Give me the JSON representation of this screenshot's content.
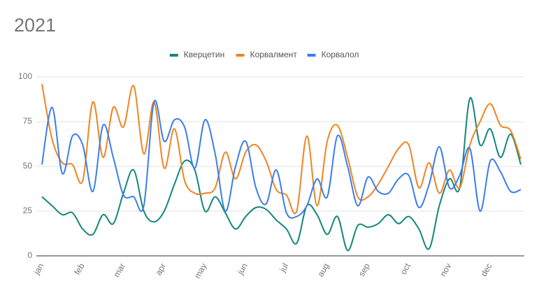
{
  "chart_data": {
    "type": "line",
    "title": "2021",
    "categories": [
      "jan",
      null,
      null,
      null,
      "feb",
      null,
      null,
      null,
      "mar",
      null,
      null,
      null,
      "apr",
      null,
      null,
      null,
      "may",
      null,
      null,
      null,
      "jun",
      null,
      null,
      null,
      "jul",
      null,
      null,
      null,
      "aug",
      null,
      null,
      null,
      "sep",
      null,
      null,
      null,
      "oct",
      null,
      null,
      null,
      "nov",
      null,
      null,
      null,
      "dec",
      null,
      null,
      null
    ],
    "series": [
      {
        "name": "Кверцетин",
        "color": "#12877b",
        "values": [
          33,
          28,
          23,
          24,
          15,
          12,
          23,
          18,
          35,
          48,
          25,
          19,
          25,
          40,
          53,
          48,
          25,
          33,
          24,
          15,
          22,
          27,
          26,
          20,
          15,
          7,
          28,
          23,
          12,
          22,
          3,
          17,
          16,
          18,
          23,
          18,
          22,
          15,
          4,
          28,
          43,
          38,
          88,
          62,
          71,
          55,
          68,
          51
        ]
      },
      {
        "name": "Корвалмент",
        "color": "#f08423",
        "values": [
          96,
          65,
          52,
          51,
          42,
          86,
          55,
          83,
          72,
          95,
          57,
          86,
          49,
          71,
          42,
          35,
          35,
          38,
          58,
          43,
          58,
          62,
          53,
          37,
          34,
          25,
          67,
          28,
          64,
          73,
          55,
          33,
          33,
          40,
          50,
          60,
          62,
          38,
          52,
          35,
          48,
          38,
          62,
          75,
          85,
          73,
          70,
          54
        ]
      },
      {
        "name": "Корвалол",
        "color": "#3b7ded",
        "values": [
          51,
          83,
          46,
          67,
          62,
          36,
          73,
          55,
          34,
          33,
          28,
          86,
          64,
          76,
          72,
          49,
          76,
          57,
          25,
          50,
          64,
          38,
          29,
          48,
          24,
          22,
          28,
          43,
          33,
          67,
          50,
          28,
          44,
          36,
          35,
          43,
          45,
          27,
          40,
          61,
          38,
          45,
          60,
          25,
          53,
          47,
          36,
          37
        ]
      }
    ],
    "ylim": [
      0,
      100
    ],
    "yticks": [
      0,
      25,
      50,
      75,
      100
    ],
    "grid": true,
    "legend": "top"
  }
}
